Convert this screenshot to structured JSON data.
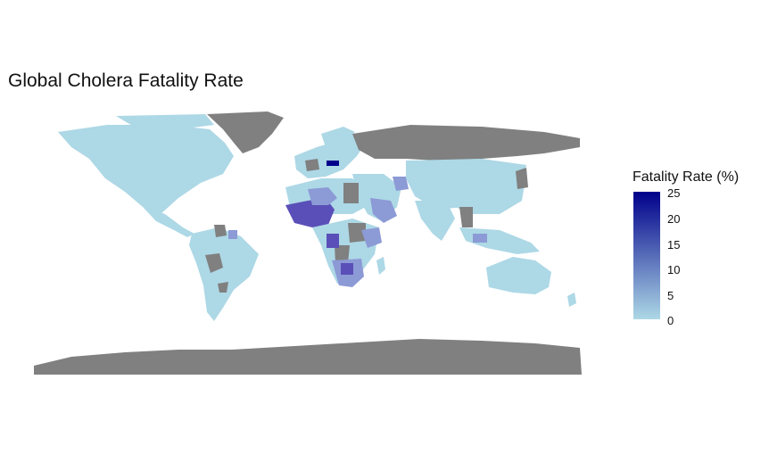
{
  "title": "Global Cholera Fatality Rate",
  "legend": {
    "title": "Fatality Rate (%)",
    "ticks": [
      "25",
      "20",
      "15",
      "10",
      "5",
      "0"
    ],
    "scale_min": 0,
    "scale_max": 25,
    "color_low": "#add8e6",
    "color_high": "#00008b"
  },
  "colors": {
    "no_data": "#808080",
    "low": "#add8e6",
    "mid": "#8c9ad6",
    "high": "#5a4fb8",
    "max": "#00008b"
  }
}
